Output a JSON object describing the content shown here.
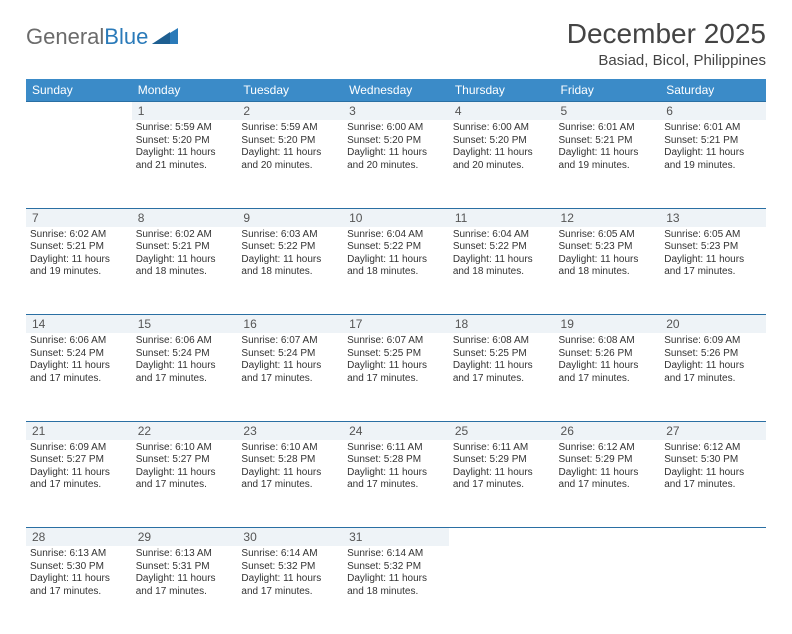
{
  "brand": {
    "part1": "General",
    "part2": "Blue"
  },
  "title": "December 2025",
  "location": "Basiad, Bicol, Philippines",
  "colors": {
    "header_bg": "#3b8bc8",
    "header_text": "#ffffff",
    "daynum_bg": "#eef3f7",
    "rule": "#2a6fa3",
    "text": "#333333",
    "logo_gray": "#6b6b6b",
    "logo_blue": "#2a7ab9"
  },
  "weekdays": [
    "Sunday",
    "Monday",
    "Tuesday",
    "Wednesday",
    "Thursday",
    "Friday",
    "Saturday"
  ],
  "weeks": [
    [
      null,
      {
        "n": "1",
        "sr": "Sunrise: 5:59 AM",
        "ss": "Sunset: 5:20 PM",
        "dl": "Daylight: 11 hours and 21 minutes."
      },
      {
        "n": "2",
        "sr": "Sunrise: 5:59 AM",
        "ss": "Sunset: 5:20 PM",
        "dl": "Daylight: 11 hours and 20 minutes."
      },
      {
        "n": "3",
        "sr": "Sunrise: 6:00 AM",
        "ss": "Sunset: 5:20 PM",
        "dl": "Daylight: 11 hours and 20 minutes."
      },
      {
        "n": "4",
        "sr": "Sunrise: 6:00 AM",
        "ss": "Sunset: 5:20 PM",
        "dl": "Daylight: 11 hours and 20 minutes."
      },
      {
        "n": "5",
        "sr": "Sunrise: 6:01 AM",
        "ss": "Sunset: 5:21 PM",
        "dl": "Daylight: 11 hours and 19 minutes."
      },
      {
        "n": "6",
        "sr": "Sunrise: 6:01 AM",
        "ss": "Sunset: 5:21 PM",
        "dl": "Daylight: 11 hours and 19 minutes."
      }
    ],
    [
      {
        "n": "7",
        "sr": "Sunrise: 6:02 AM",
        "ss": "Sunset: 5:21 PM",
        "dl": "Daylight: 11 hours and 19 minutes."
      },
      {
        "n": "8",
        "sr": "Sunrise: 6:02 AM",
        "ss": "Sunset: 5:21 PM",
        "dl": "Daylight: 11 hours and 18 minutes."
      },
      {
        "n": "9",
        "sr": "Sunrise: 6:03 AM",
        "ss": "Sunset: 5:22 PM",
        "dl": "Daylight: 11 hours and 18 minutes."
      },
      {
        "n": "10",
        "sr": "Sunrise: 6:04 AM",
        "ss": "Sunset: 5:22 PM",
        "dl": "Daylight: 11 hours and 18 minutes."
      },
      {
        "n": "11",
        "sr": "Sunrise: 6:04 AM",
        "ss": "Sunset: 5:22 PM",
        "dl": "Daylight: 11 hours and 18 minutes."
      },
      {
        "n": "12",
        "sr": "Sunrise: 6:05 AM",
        "ss": "Sunset: 5:23 PM",
        "dl": "Daylight: 11 hours and 18 minutes."
      },
      {
        "n": "13",
        "sr": "Sunrise: 6:05 AM",
        "ss": "Sunset: 5:23 PM",
        "dl": "Daylight: 11 hours and 17 minutes."
      }
    ],
    [
      {
        "n": "14",
        "sr": "Sunrise: 6:06 AM",
        "ss": "Sunset: 5:24 PM",
        "dl": "Daylight: 11 hours and 17 minutes."
      },
      {
        "n": "15",
        "sr": "Sunrise: 6:06 AM",
        "ss": "Sunset: 5:24 PM",
        "dl": "Daylight: 11 hours and 17 minutes."
      },
      {
        "n": "16",
        "sr": "Sunrise: 6:07 AM",
        "ss": "Sunset: 5:24 PM",
        "dl": "Daylight: 11 hours and 17 minutes."
      },
      {
        "n": "17",
        "sr": "Sunrise: 6:07 AM",
        "ss": "Sunset: 5:25 PM",
        "dl": "Daylight: 11 hours and 17 minutes."
      },
      {
        "n": "18",
        "sr": "Sunrise: 6:08 AM",
        "ss": "Sunset: 5:25 PM",
        "dl": "Daylight: 11 hours and 17 minutes."
      },
      {
        "n": "19",
        "sr": "Sunrise: 6:08 AM",
        "ss": "Sunset: 5:26 PM",
        "dl": "Daylight: 11 hours and 17 minutes."
      },
      {
        "n": "20",
        "sr": "Sunrise: 6:09 AM",
        "ss": "Sunset: 5:26 PM",
        "dl": "Daylight: 11 hours and 17 minutes."
      }
    ],
    [
      {
        "n": "21",
        "sr": "Sunrise: 6:09 AM",
        "ss": "Sunset: 5:27 PM",
        "dl": "Daylight: 11 hours and 17 minutes."
      },
      {
        "n": "22",
        "sr": "Sunrise: 6:10 AM",
        "ss": "Sunset: 5:27 PM",
        "dl": "Daylight: 11 hours and 17 minutes."
      },
      {
        "n": "23",
        "sr": "Sunrise: 6:10 AM",
        "ss": "Sunset: 5:28 PM",
        "dl": "Daylight: 11 hours and 17 minutes."
      },
      {
        "n": "24",
        "sr": "Sunrise: 6:11 AM",
        "ss": "Sunset: 5:28 PM",
        "dl": "Daylight: 11 hours and 17 minutes."
      },
      {
        "n": "25",
        "sr": "Sunrise: 6:11 AM",
        "ss": "Sunset: 5:29 PM",
        "dl": "Daylight: 11 hours and 17 minutes."
      },
      {
        "n": "26",
        "sr": "Sunrise: 6:12 AM",
        "ss": "Sunset: 5:29 PM",
        "dl": "Daylight: 11 hours and 17 minutes."
      },
      {
        "n": "27",
        "sr": "Sunrise: 6:12 AM",
        "ss": "Sunset: 5:30 PM",
        "dl": "Daylight: 11 hours and 17 minutes."
      }
    ],
    [
      {
        "n": "28",
        "sr": "Sunrise: 6:13 AM",
        "ss": "Sunset: 5:30 PM",
        "dl": "Daylight: 11 hours and 17 minutes."
      },
      {
        "n": "29",
        "sr": "Sunrise: 6:13 AM",
        "ss": "Sunset: 5:31 PM",
        "dl": "Daylight: 11 hours and 17 minutes."
      },
      {
        "n": "30",
        "sr": "Sunrise: 6:14 AM",
        "ss": "Sunset: 5:32 PM",
        "dl": "Daylight: 11 hours and 17 minutes."
      },
      {
        "n": "31",
        "sr": "Sunrise: 6:14 AM",
        "ss": "Sunset: 5:32 PM",
        "dl": "Daylight: 11 hours and 18 minutes."
      },
      null,
      null,
      null
    ]
  ]
}
